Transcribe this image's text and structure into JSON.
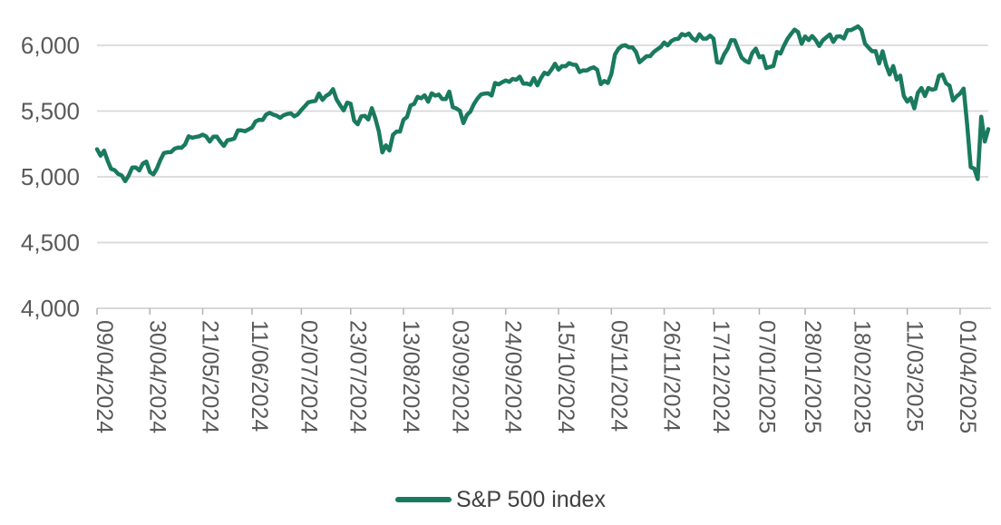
{
  "chart_data": {
    "type": "line",
    "title": "",
    "legend_position": "bottom",
    "grid": "horizontal",
    "background_color": "#ffffff",
    "grid_color": "#d9d9d9",
    "axis_line_color": "#d2d2d2",
    "tick_color": "#b3b3b3",
    "label_color": "#595959",
    "legend_text_color": "#404040",
    "ylim": [
      4000,
      6200
    ],
    "y_ticks": [
      4000,
      4500,
      5000,
      5500,
      6000
    ],
    "y_tick_labels": [
      "4,000",
      "4,500",
      "5,000",
      "5,500",
      "6,000"
    ],
    "x_tick_labels": [
      "09/04/2024",
      "30/04/2024",
      "21/05/2024",
      "11/06/2024",
      "02/07/2024",
      "23/07/2024",
      "13/08/2024",
      "03/09/2024",
      "24/09/2024",
      "15/10/2024",
      "05/11/2024",
      "26/11/2024",
      "17/12/2024",
      "07/01/2025",
      "28/01/2025",
      "18/02/2025",
      "11/03/2025",
      "01/04/2025"
    ],
    "x_tick_indices": [
      0,
      15,
      30,
      44,
      58,
      72,
      87,
      101,
      116,
      131,
      146,
      161,
      175,
      188,
      201,
      215,
      230,
      245
    ],
    "series": [
      {
        "name": "S&P 500 index",
        "color": "#1a7a5e",
        "values": [
          5210,
          5161,
          5199,
          5123,
          5061,
          5051,
          5022,
          5011,
          4967,
          5011,
          5071,
          5072,
          5048,
          5100,
          5116,
          5036,
          5018,
          5064,
          5128,
          5181,
          5187,
          5188,
          5214,
          5223,
          5221,
          5246,
          5308,
          5297,
          5303,
          5308,
          5321,
          5307,
          5268,
          5305,
          5306,
          5267,
          5235,
          5278,
          5283,
          5291,
          5354,
          5353,
          5347,
          5361,
          5375,
          5421,
          5434,
          5432,
          5473,
          5487,
          5473,
          5465,
          5448,
          5469,
          5478,
          5483,
          5460,
          5475,
          5509,
          5537,
          5567,
          5573,
          5577,
          5634,
          5585,
          5615,
          5631,
          5667,
          5588,
          5545,
          5505,
          5564,
          5556,
          5427,
          5399,
          5459,
          5464,
          5436,
          5522,
          5446,
          5346,
          5186,
          5240,
          5200,
          5319,
          5344,
          5344,
          5434,
          5455,
          5543,
          5554,
          5608,
          5597,
          5620,
          5571,
          5635,
          5617,
          5626,
          5592,
          5592,
          5648,
          5529,
          5520,
          5503,
          5408,
          5471,
          5496,
          5554,
          5595,
          5626,
          5633,
          5635,
          5618,
          5714,
          5703,
          5719,
          5733,
          5722,
          5745,
          5738,
          5762,
          5709,
          5710,
          5700,
          5751,
          5696,
          5751,
          5792,
          5780,
          5815,
          5860,
          5815,
          5842,
          5841,
          5865,
          5854,
          5851,
          5797,
          5810,
          5808,
          5824,
          5833,
          5814,
          5705,
          5729,
          5713,
          5783,
          5929,
          5973,
          5996,
          6001,
          5984,
          5985,
          5949,
          5871,
          5894,
          5917,
          5917,
          5949,
          5969,
          5987,
          6022,
          5999,
          6032,
          6047,
          6050,
          6086,
          6075,
          6090,
          6053,
          6035,
          6084,
          6051,
          6051,
          6074,
          6051,
          5872,
          5867,
          5931,
          5974,
          6040,
          6038,
          5971,
          5906,
          5882,
          5869,
          5942,
          5975,
          5909,
          5918,
          5827,
          5836,
          5843,
          5950,
          5937,
          5997,
          6049,
          6086,
          6119,
          6101,
          6012,
          6068,
          6039,
          6071,
          6041,
          5995,
          6038,
          6061,
          6083,
          6026,
          6066,
          6069,
          6052,
          6115,
          6115,
          6129,
          6144,
          6118,
          6013,
          5983,
          5955,
          5956,
          5862,
          5955,
          5850,
          5778,
          5843,
          5739,
          5770,
          5615,
          5572,
          5599,
          5521,
          5639,
          5675,
          5615,
          5676,
          5663,
          5668,
          5768,
          5777,
          5712,
          5693,
          5581,
          5612,
          5633,
          5671,
          5396,
          5074,
          5062,
          4983,
          5457,
          5268,
          5363
        ]
      }
    ]
  }
}
